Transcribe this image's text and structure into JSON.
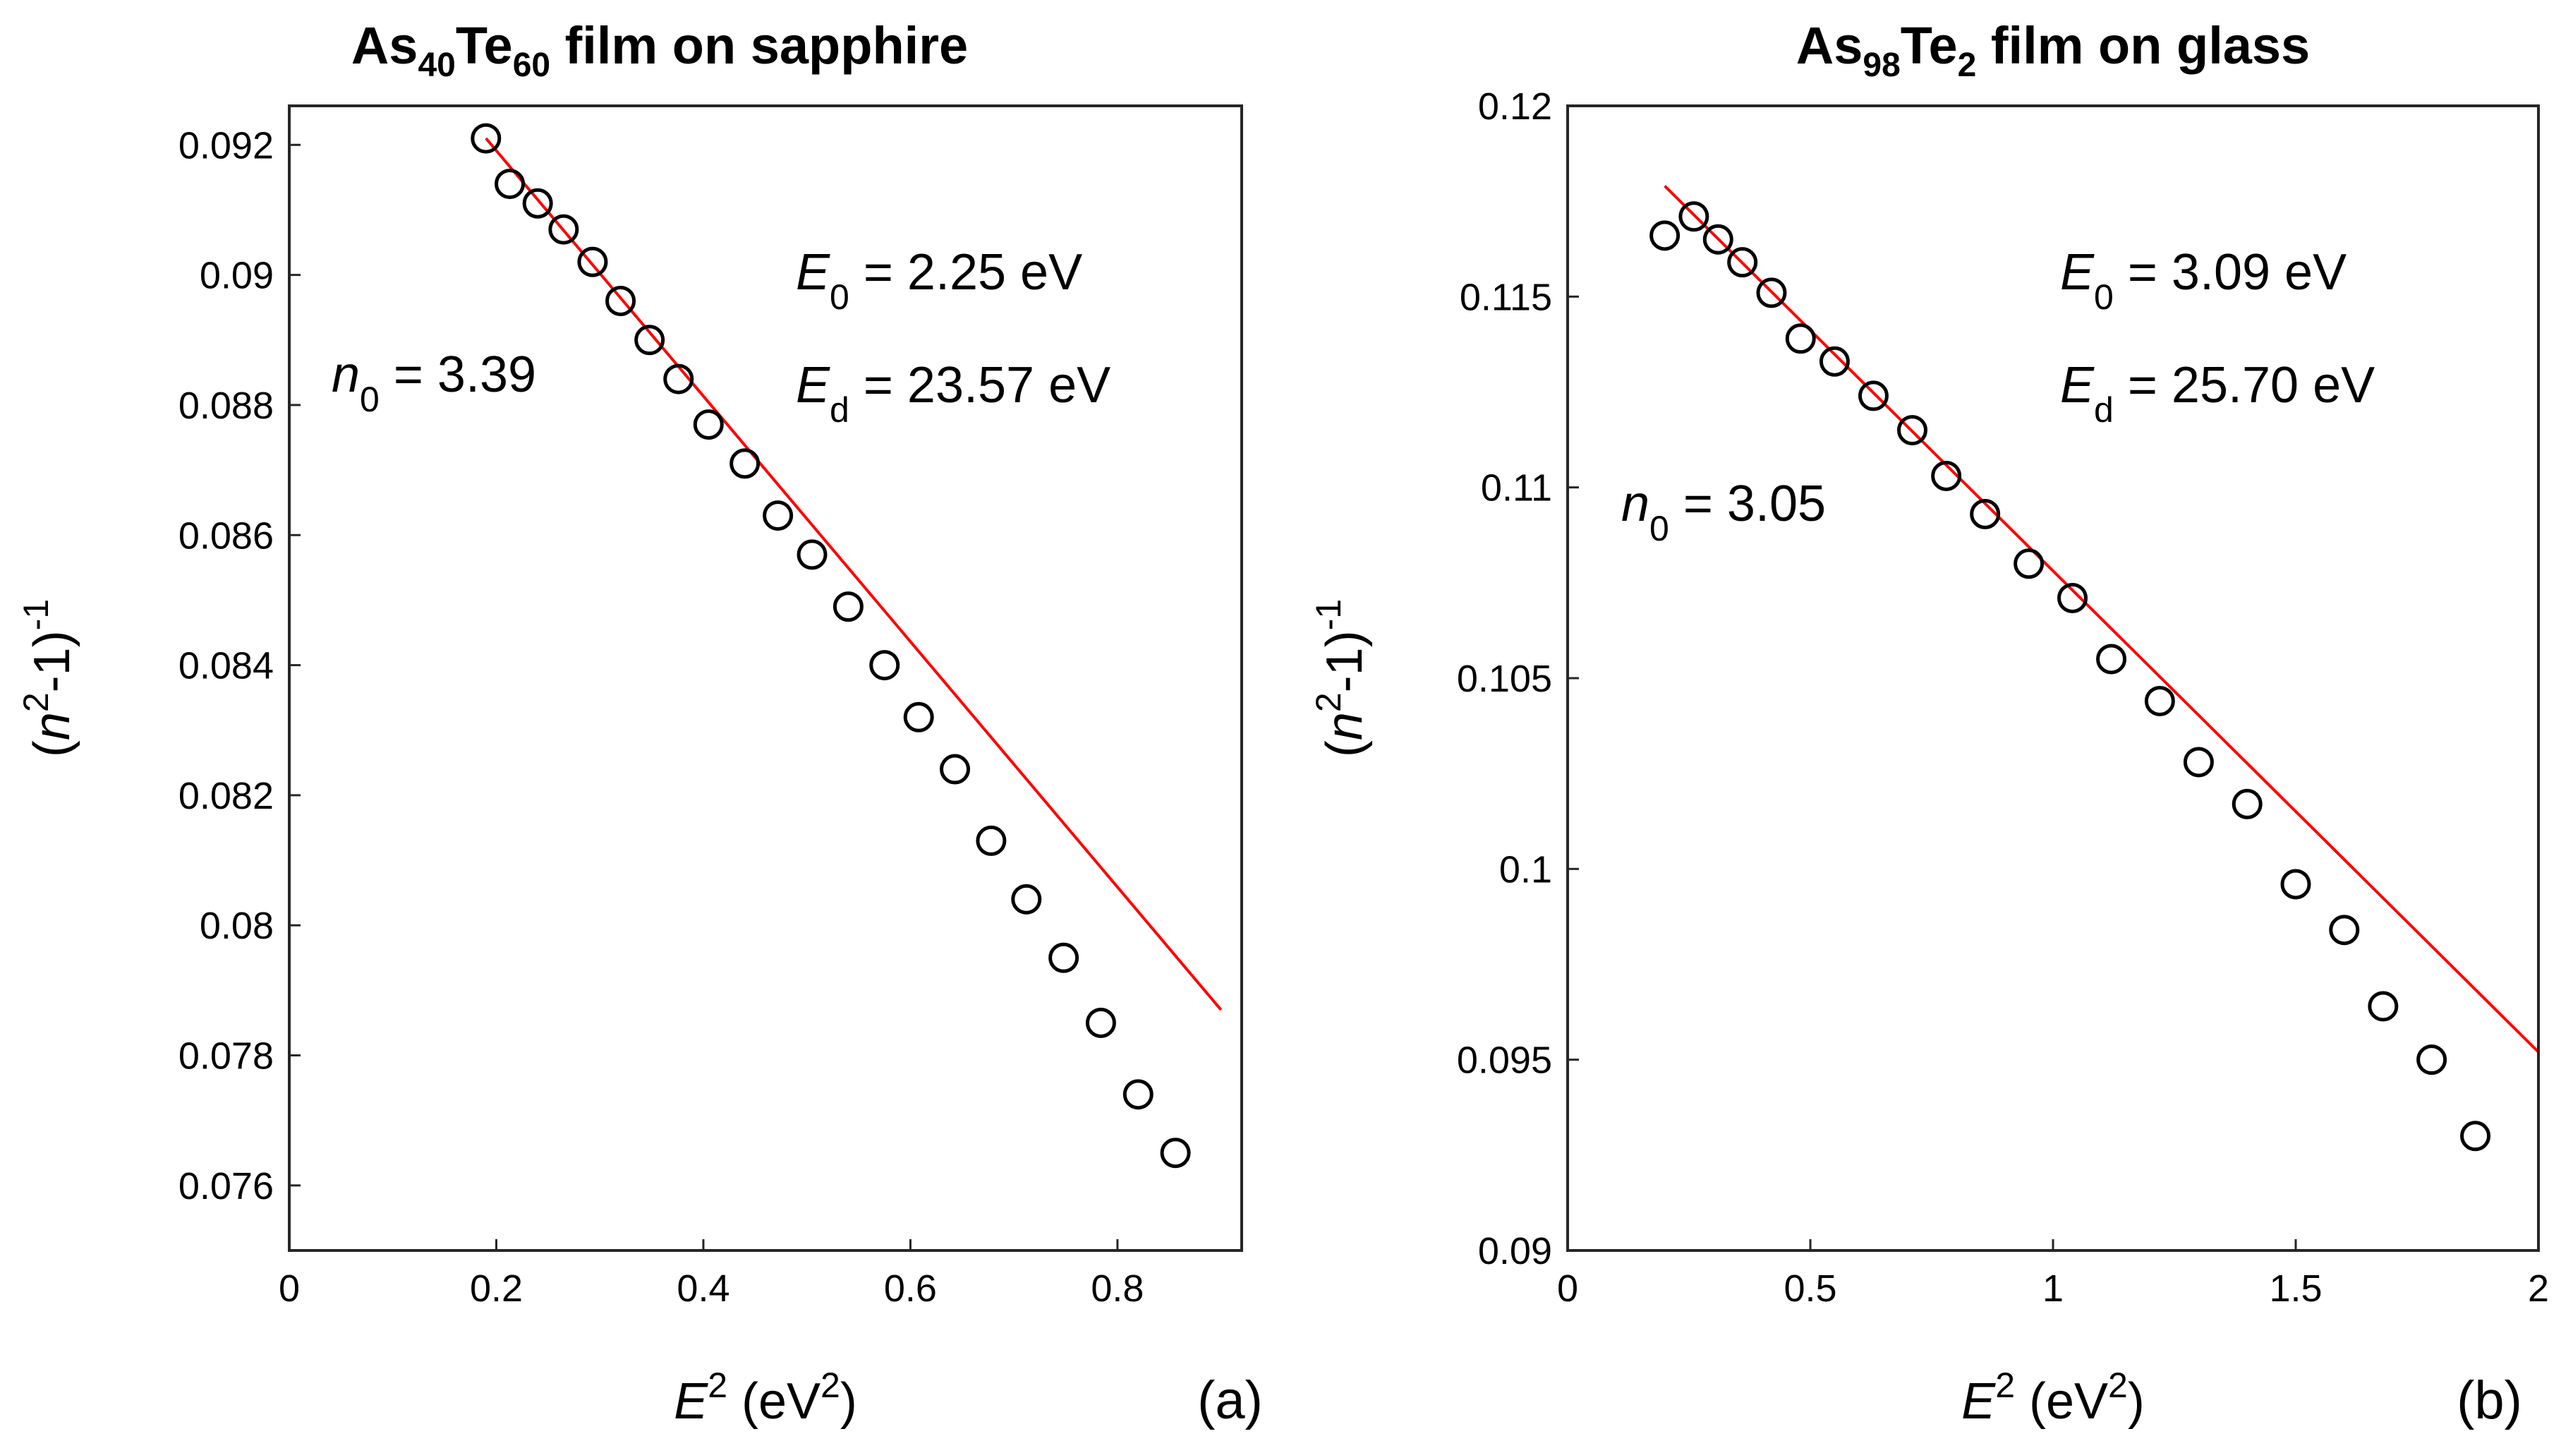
{
  "chart_data": [
    {
      "type": "scatter",
      "panel_label": "(a)",
      "title": {
        "a": "As",
        "sub1": "40",
        "b": "Te",
        "sub2": "60",
        "c": " film on sapphire"
      },
      "xlabel": {
        "var": "E",
        "sup": "2",
        "mid": " (eV",
        "unit_sup": "2",
        "end": ")"
      },
      "ylabel": {
        "open": "(",
        "var": "n",
        "sup": "2",
        "mid": "-1)",
        "exp": "-1"
      },
      "xlim": [
        0,
        0.92
      ],
      "ylim": [
        0.075,
        0.0926
      ],
      "xticks": [
        0,
        0.2,
        0.4,
        0.6,
        0.8
      ],
      "xtick_labels": [
        "0",
        "0.2",
        "0.4",
        "0.6",
        "0.8"
      ],
      "yticks": [
        0.076,
        0.078,
        0.08,
        0.082,
        0.084,
        0.086,
        0.088,
        0.09,
        0.092
      ],
      "ytick_labels": [
        "0.076",
        "0.078",
        "0.08",
        "0.082",
        "0.084",
        "0.086",
        "0.088",
        "0.09",
        "0.092"
      ],
      "points": {
        "x": [
          0.19,
          0.213,
          0.24,
          0.265,
          0.293,
          0.32,
          0.348,
          0.376,
          0.405,
          0.44,
          0.472,
          0.505,
          0.54,
          0.575,
          0.608,
          0.643,
          0.678,
          0.712,
          0.748,
          0.784,
          0.82,
          0.856
        ],
        "y": [
          0.0921,
          0.0914,
          0.0911,
          0.0907,
          0.0902,
          0.0896,
          0.089,
          0.0884,
          0.0877,
          0.0871,
          0.0863,
          0.0857,
          0.0849,
          0.084,
          0.0832,
          0.0824,
          0.0813,
          0.0804,
          0.0795,
          0.0785,
          0.0774,
          0.0765
        ]
      },
      "fit_line": {
        "x": [
          0.19,
          0.9
        ],
        "y": [
          0.0921,
          0.0787
        ],
        "color": "#ff0000"
      },
      "annotations": {
        "n0": {
          "var": "n",
          "sub": "0",
          "text": " = 3.39"
        },
        "E0": {
          "var": "E",
          "sub": "0",
          "text": " = 2.25 eV"
        },
        "Ed": {
          "var": "E",
          "sub": "d",
          "text": " = 23.57 eV"
        }
      }
    },
    {
      "type": "scatter",
      "panel_label": "(b)",
      "title": {
        "a": "As",
        "sub1": "98",
        "b": "Te",
        "sub2": "2",
        "c": " film on glass"
      },
      "xlabel": {
        "var": "E",
        "sup": "2",
        "mid": " (eV",
        "unit_sup": "2",
        "end": ")"
      },
      "ylabel": {
        "open": "(",
        "var": "n",
        "sup": "2",
        "mid": "-1)",
        "exp": "-1"
      },
      "xlim": [
        0,
        2
      ],
      "ylim": [
        0.09,
        0.12
      ],
      "xticks": [
        0,
        0.5,
        1,
        1.5,
        2
      ],
      "xtick_labels": [
        "0",
        "0.5",
        "1",
        "1.5",
        "2"
      ],
      "yticks": [
        0.09,
        0.095,
        0.1,
        0.105,
        0.11,
        0.115,
        0.12
      ],
      "ytick_labels": [
        "0.09",
        "0.095",
        "0.1",
        "0.105",
        "0.11",
        "0.115",
        "0.12"
      ],
      "points": {
        "x": [
          0.2,
          0.26,
          0.31,
          0.36,
          0.42,
          0.48,
          0.55,
          0.63,
          0.71,
          0.78,
          0.86,
          0.95,
          1.04,
          1.12,
          1.22,
          1.3,
          1.4,
          1.5,
          1.6,
          1.68,
          1.78,
          1.87
        ],
        "y": [
          0.1166,
          0.1171,
          0.1165,
          0.1159,
          0.1151,
          0.1139,
          0.1133,
          0.1124,
          0.1115,
          0.1103,
          0.1093,
          0.108,
          0.1071,
          0.1055,
          0.1044,
          0.1028,
          0.1017,
          0.0996,
          0.0984,
          0.0964,
          0.095,
          0.093
        ]
      },
      "fit_line": {
        "x": [
          0.2,
          2.0
        ],
        "y": [
          0.1179,
          0.0952
        ],
        "color": "#ff0000"
      },
      "annotations": {
        "n0": {
          "var": "n",
          "sub": "0",
          "text": " = 3.05"
        },
        "E0": {
          "var": "E",
          "sub": "0",
          "text": " = 3.09 eV"
        },
        "Ed": {
          "var": "E",
          "sub": "d",
          "text": " = 25.70 eV"
        }
      }
    }
  ]
}
